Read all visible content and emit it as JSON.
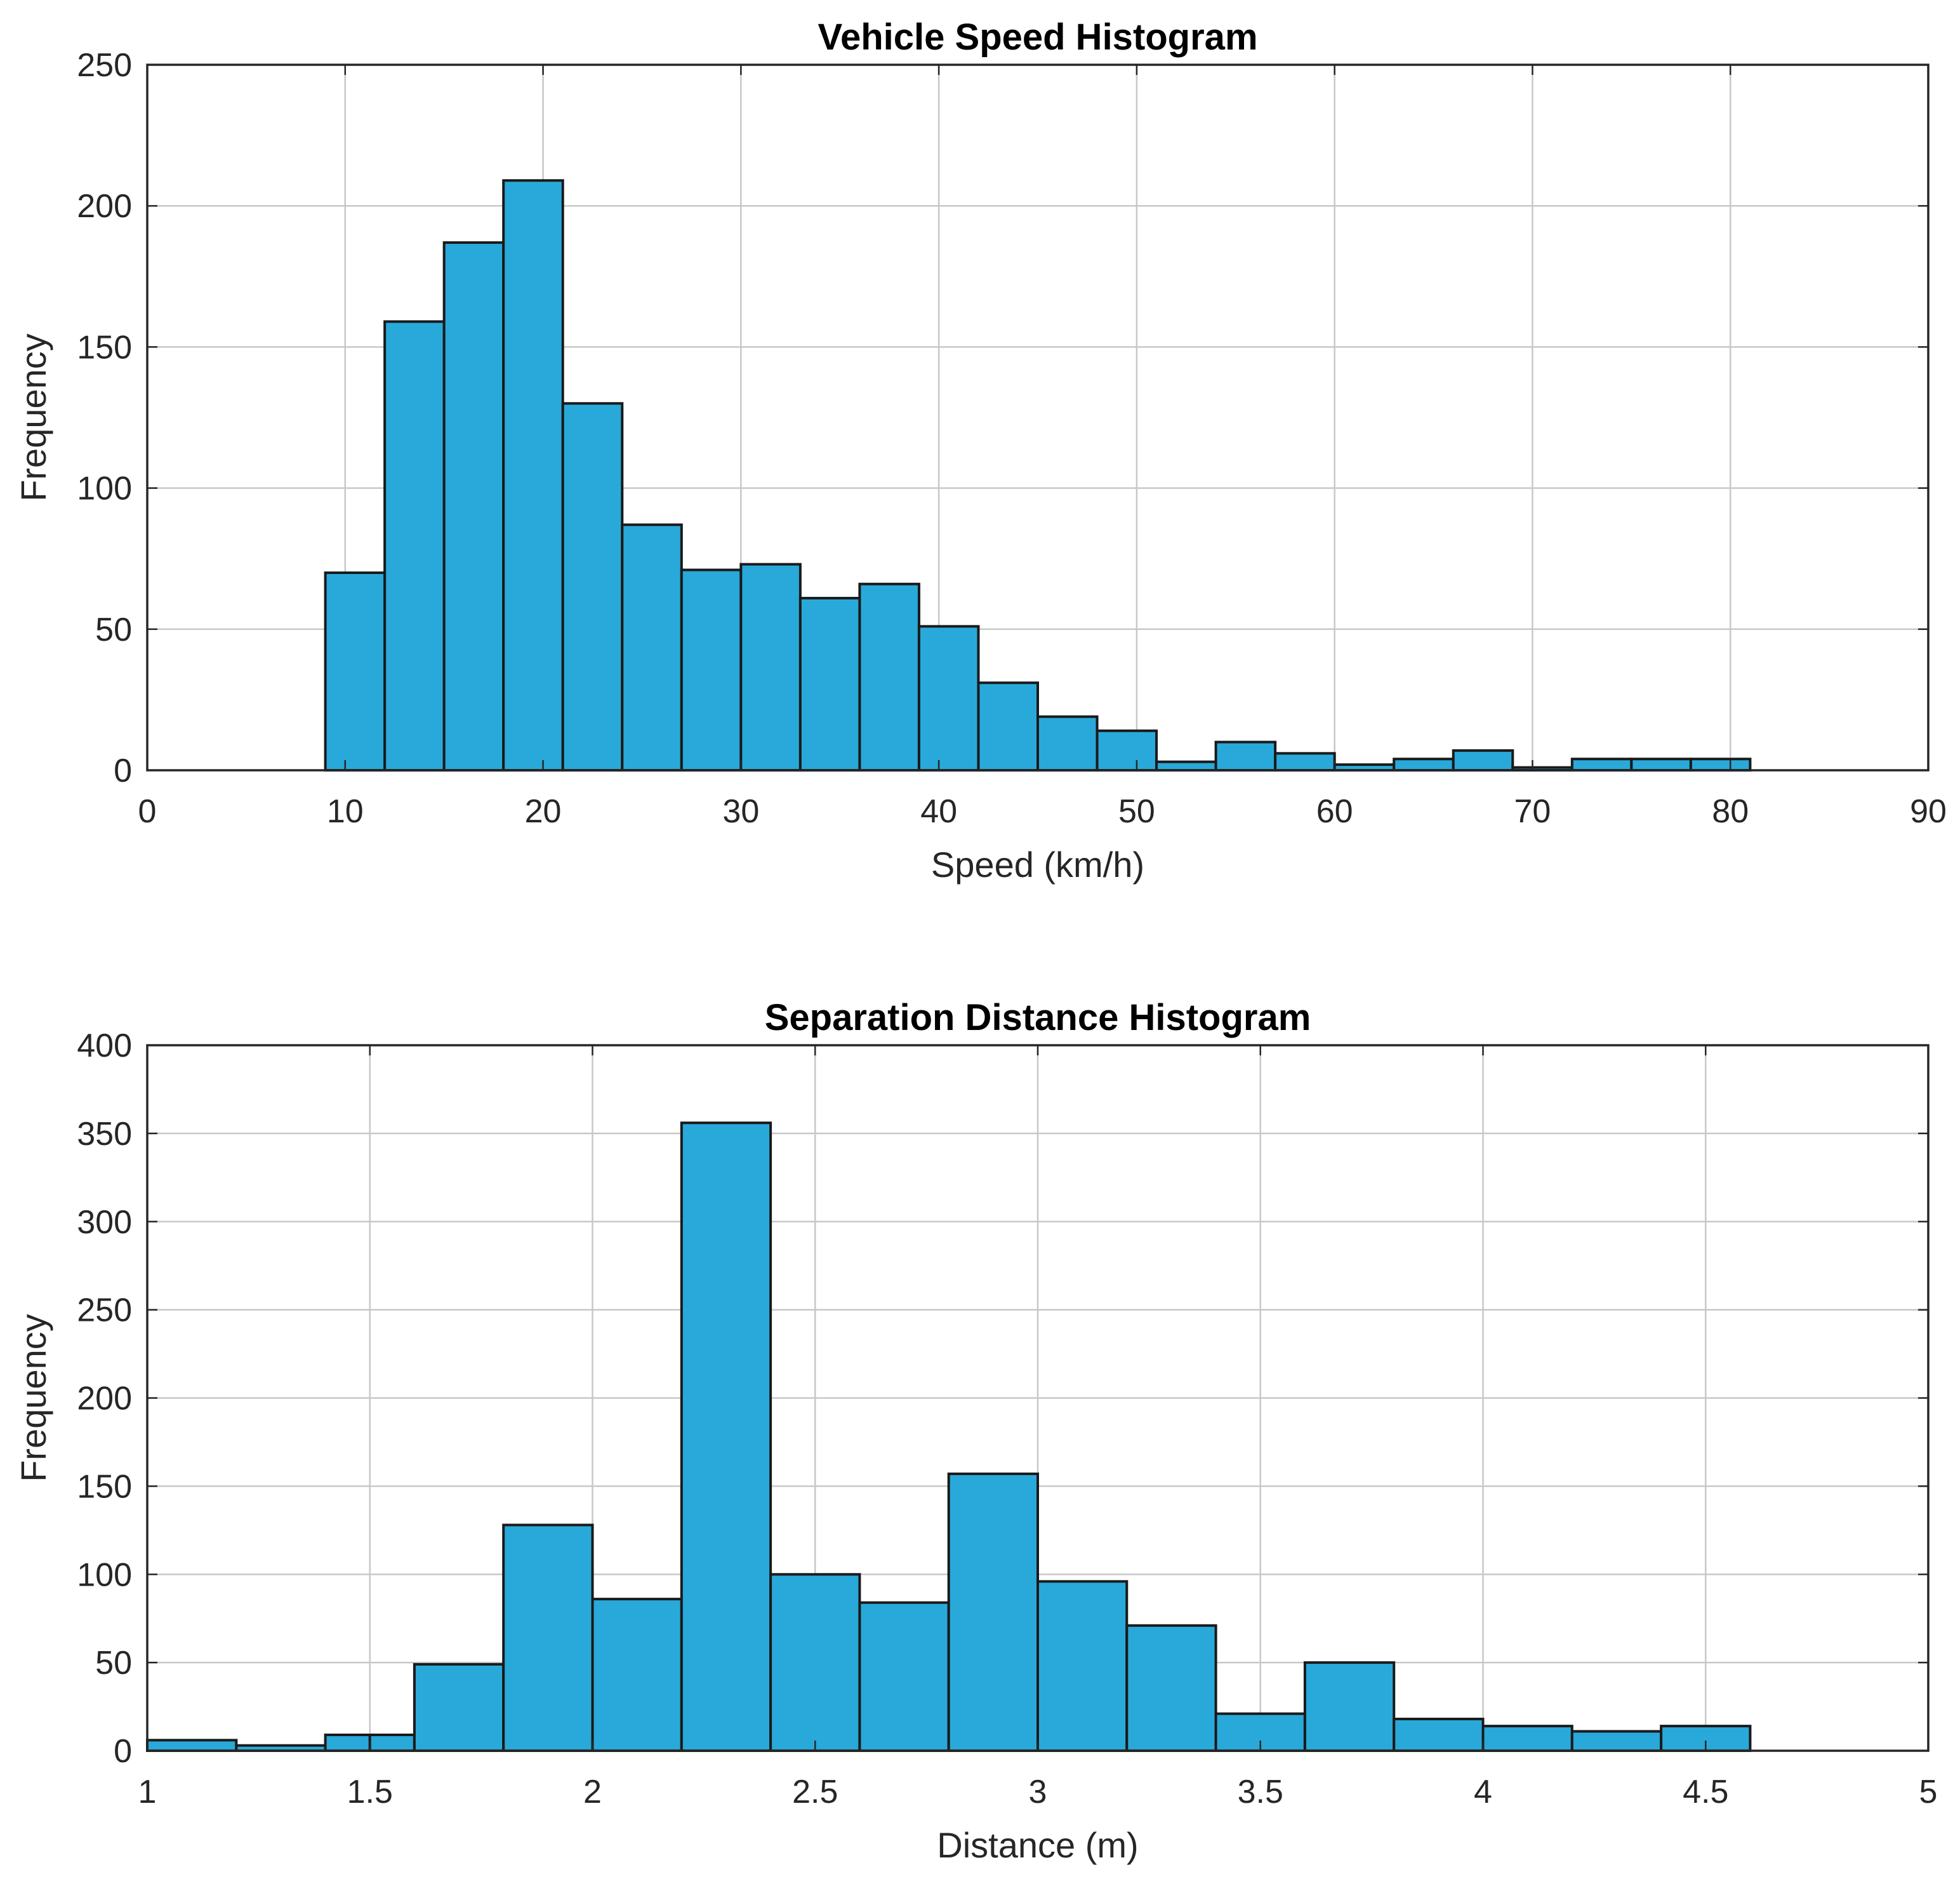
{
  "chart_data": [
    {
      "type": "bar",
      "subtype": "histogram",
      "title": "Vehicle Speed Histogram",
      "xlabel": "Speed (km/h)",
      "ylabel": "Frequency",
      "xlim": [
        0,
        90
      ],
      "ylim": [
        0,
        250
      ],
      "xticks": [
        0,
        10,
        20,
        30,
        40,
        50,
        60,
        70,
        80,
        90
      ],
      "xtick_labels": [
        "0",
        "10",
        "20",
        "30",
        "40",
        "50",
        "60",
        "70",
        "80",
        "90"
      ],
      "yticks": [
        0,
        50,
        100,
        150,
        200,
        250
      ],
      "ytick_labels": [
        "0",
        "50",
        "100",
        "150",
        "200",
        "250"
      ],
      "grid": true,
      "bar_color": "#29a9d9",
      "bin_start": 9,
      "bin_width": 3,
      "values": [
        70,
        159,
        187,
        209,
        130,
        87,
        71,
        73,
        61,
        66,
        51,
        31,
        19,
        14,
        3,
        10,
        6,
        2,
        4,
        7,
        1,
        4,
        4,
        4
      ]
    },
    {
      "type": "bar",
      "subtype": "histogram",
      "title": "Separation Distance Histogram",
      "xlabel": "Distance (m)",
      "ylabel": "Frequency",
      "xlim": [
        1,
        5
      ],
      "ylim": [
        0,
        400
      ],
      "xticks": [
        1,
        1.5,
        2,
        2.5,
        3,
        3.5,
        4,
        4.5,
        5
      ],
      "xtick_labels": [
        "1",
        "1.5",
        "2",
        "2.5",
        "3",
        "3.5",
        "4",
        "4.5",
        "5"
      ],
      "yticks": [
        0,
        50,
        100,
        150,
        200,
        250,
        300,
        350,
        400
      ],
      "ytick_labels": [
        "0",
        "50",
        "100",
        "150",
        "200",
        "250",
        "300",
        "350",
        "400"
      ],
      "grid": true,
      "bar_color": "#29a9d9",
      "bins": [
        {
          "start": 1.0,
          "end": 1.2,
          "value": 6
        },
        {
          "start": 1.2,
          "end": 1.4,
          "value": 3
        },
        {
          "start": 1.4,
          "end": 1.5,
          "value": 9
        },
        {
          "start": 1.5,
          "end": 1.6,
          "value": 9
        },
        {
          "start": 1.6,
          "end": 1.8,
          "value": 49
        },
        {
          "start": 1.8,
          "end": 2.0,
          "value": 128
        },
        {
          "start": 2.0,
          "end": 2.2,
          "value": 86
        },
        {
          "start": 2.2,
          "end": 2.4,
          "value": 356
        },
        {
          "start": 2.4,
          "end": 2.6,
          "value": 100
        },
        {
          "start": 2.6,
          "end": 2.8,
          "value": 84
        },
        {
          "start": 2.8,
          "end": 3.0,
          "value": 157
        },
        {
          "start": 3.0,
          "end": 3.2,
          "value": 96
        },
        {
          "start": 3.2,
          "end": 3.4,
          "value": 71
        },
        {
          "start": 3.4,
          "end": 3.6,
          "value": 21
        },
        {
          "start": 3.6,
          "end": 3.8,
          "value": 50
        },
        {
          "start": 3.8,
          "end": 4.0,
          "value": 18
        },
        {
          "start": 4.0,
          "end": 4.2,
          "value": 14
        },
        {
          "start": 4.2,
          "end": 4.4,
          "value": 11
        },
        {
          "start": 4.4,
          "end": 4.6,
          "value": 14
        }
      ]
    }
  ]
}
